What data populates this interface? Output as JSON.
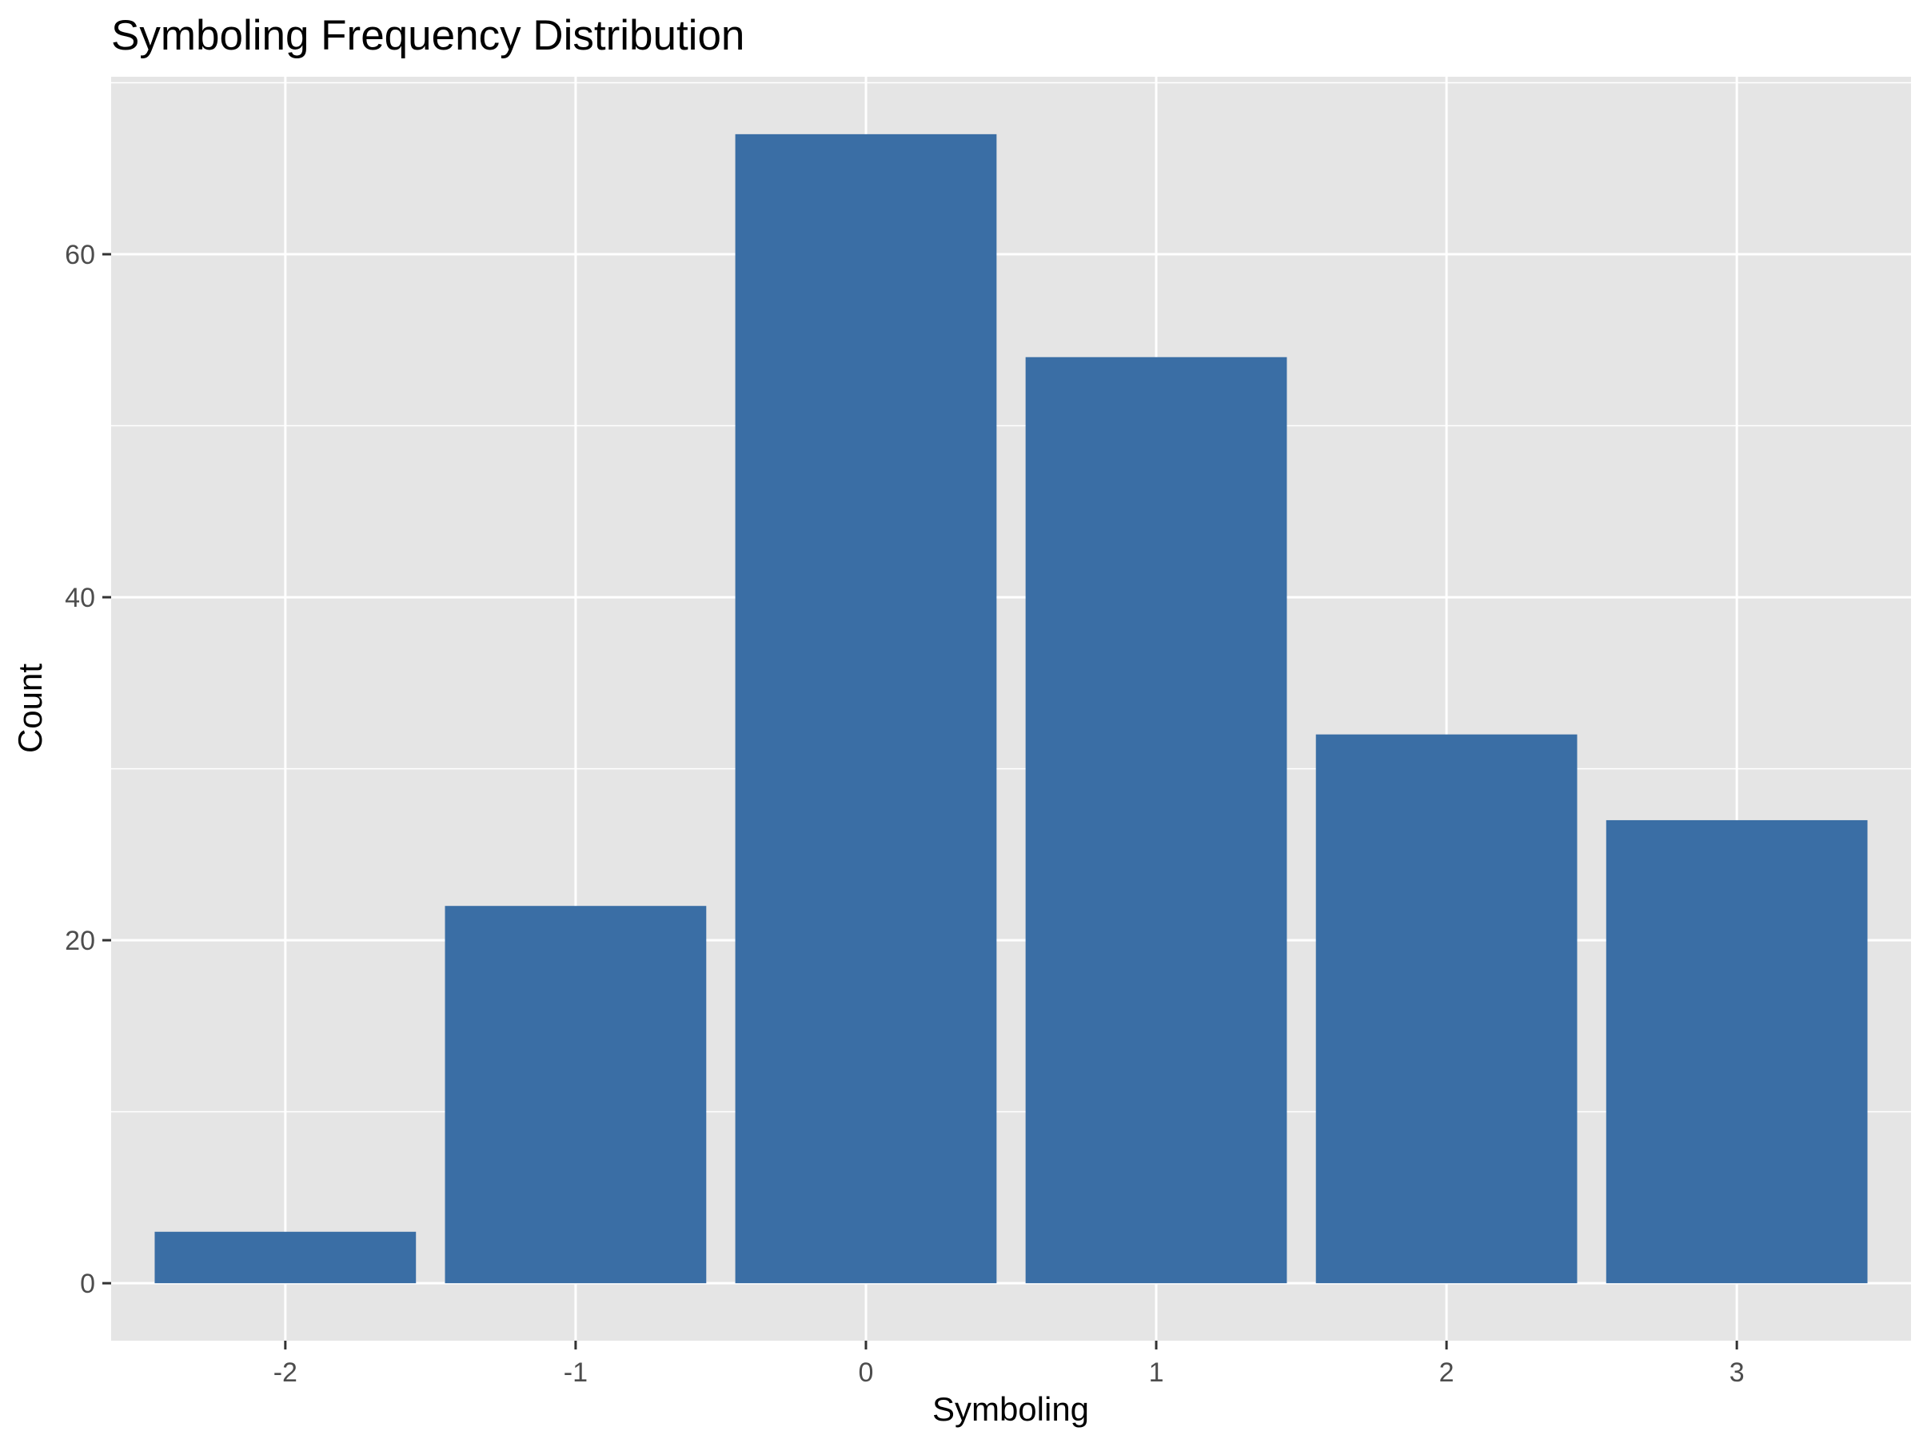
{
  "chart_data": {
    "type": "bar",
    "title": "Symboling Frequency Distribution",
    "xlabel": "Symboling",
    "ylabel": "Count",
    "categories": [
      "-2",
      "-1",
      "0",
      "1",
      "2",
      "3"
    ],
    "values": [
      3,
      22,
      67,
      54,
      32,
      27
    ],
    "ylim": [
      -3.35,
      70.35
    ],
    "y_ticks": [
      0,
      20,
      40,
      60
    ],
    "y_tick_labels": [
      "0",
      "20",
      "40",
      "60"
    ],
    "y_minor_ticks": [
      10,
      30,
      50,
      70
    ],
    "grid": true,
    "legend": "none",
    "colors": {
      "bar": "#3A6EA5",
      "panel": "#E5E5E5",
      "grid": "#FFFFFF",
      "tick": "#333333",
      "tick_label": "#4D4D4D"
    }
  }
}
